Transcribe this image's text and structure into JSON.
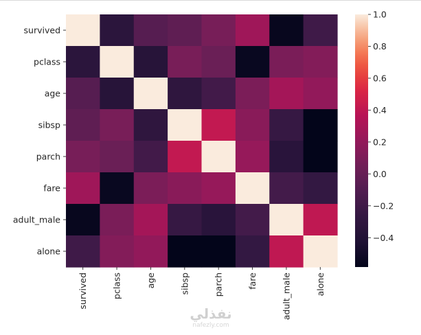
{
  "chart_data": {
    "type": "heatmap",
    "title": "",
    "xlabel": "",
    "ylabel": "",
    "row_labels": [
      "survived",
      "pclass",
      "age",
      "sibsp",
      "parch",
      "fare",
      "adult_male",
      "alone"
    ],
    "col_labels": [
      "survived",
      "pclass",
      "age",
      "sibsp",
      "parch",
      "fare",
      "adult_male",
      "alone"
    ],
    "values": [
      [
        1.0,
        -0.338,
        -0.077,
        -0.035,
        0.082,
        0.257,
        -0.557,
        -0.203
      ],
      [
        -0.338,
        1.0,
        -0.369,
        0.083,
        0.018,
        -0.549,
        0.094,
        0.135
      ],
      [
        -0.077,
        -0.369,
        1.0,
        -0.308,
        -0.189,
        0.096,
        0.28,
        0.198
      ],
      [
        -0.035,
        0.083,
        -0.308,
        1.0,
        0.415,
        0.16,
        -0.254,
        -0.584
      ],
      [
        0.082,
        0.018,
        -0.189,
        0.415,
        1.0,
        0.216,
        -0.35,
        -0.583
      ],
      [
        0.257,
        -0.549,
        0.096,
        0.16,
        0.216,
        1.0,
        -0.182,
        -0.272
      ],
      [
        -0.557,
        0.094,
        0.28,
        -0.254,
        -0.35,
        -0.182,
        1.0,
        0.404
      ],
      [
        -0.203,
        0.135,
        0.198,
        -0.584,
        -0.583,
        -0.272,
        0.404,
        1.0
      ]
    ],
    "colormap": "rocket",
    "vmin": -0.584,
    "vmax": 1.0,
    "colorbar": {
      "ticks": [
        1.0,
        0.8,
        0.6,
        0.4,
        0.2,
        0.0,
        -0.2,
        -0.4
      ],
      "tick_labels": [
        "1.0",
        "0.8",
        "0.6",
        "0.4",
        "0.2",
        "0.0",
        "−0.2",
        "−0.4"
      ],
      "placement": "right"
    },
    "grid": false
  },
  "watermark": {
    "arabic": "نفذلي",
    "latin": "nafezly.com"
  }
}
